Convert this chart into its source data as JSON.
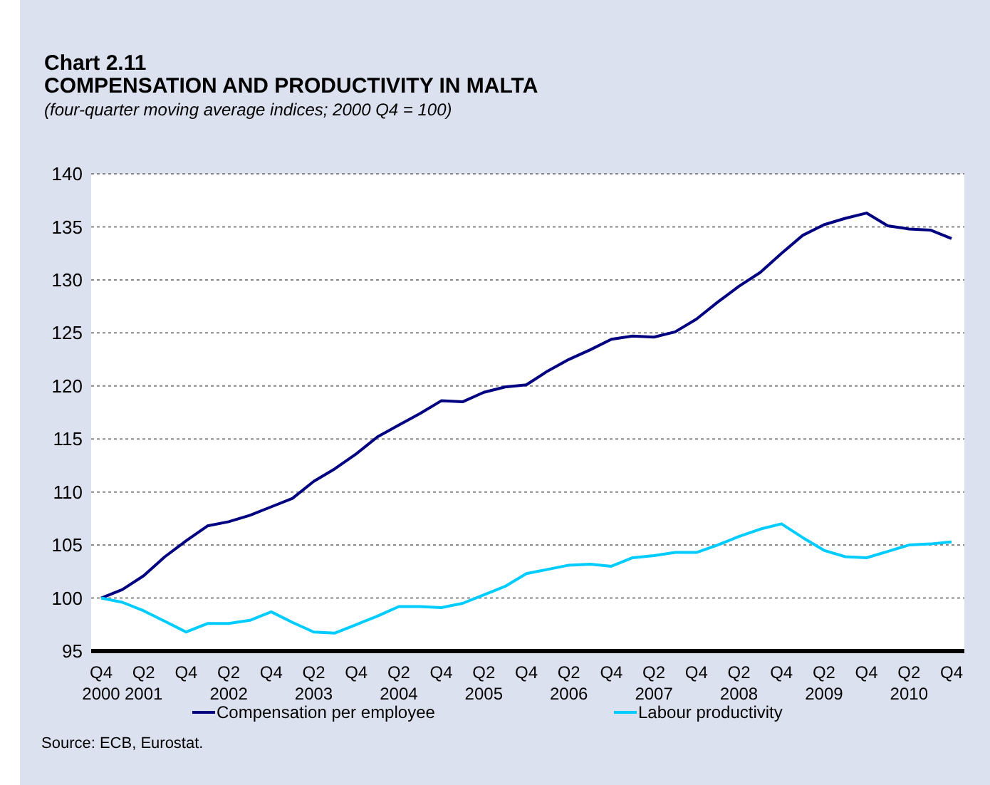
{
  "chart_data": {
    "type": "line",
    "title": "Chart 2.11\nCOMPENSATION AND PRODUCTIVITY IN MALTA",
    "subtitle": "(four-quarter moving average indices; 2000 Q4 = 100)",
    "categories": [
      "Q4\n2000",
      null,
      "Q2\n2001",
      null,
      "Q4",
      null,
      "Q2\n2002",
      null,
      "Q4",
      null,
      "Q2\n2003",
      null,
      "Q4",
      null,
      "Q2\n2004",
      null,
      "Q4",
      null,
      "Q2\n2005",
      null,
      "Q4",
      null,
      "Q2\n2006",
      null,
      "Q4",
      null,
      "Q2\n2007",
      null,
      "Q4",
      null,
      "Q2\n2008",
      null,
      "Q4",
      null,
      "Q2\n2009",
      null,
      "Q4",
      null,
      "Q2\n2010",
      null,
      "Q4"
    ],
    "series": [
      {
        "name": "Compensation per employee",
        "color": "#000080",
        "values": [
          100,
          100.8,
          102.1,
          103.9,
          105.4,
          106.8,
          107.2,
          107.8,
          108.6,
          109.4,
          111.0,
          112.2,
          113.6,
          115.2,
          116.3,
          117.4,
          118.6,
          118.5,
          119.4,
          119.9,
          120.1,
          121.4,
          122.5,
          123.4,
          124.4,
          124.7,
          124.6,
          125.1,
          126.3,
          127.9,
          129.4,
          130.7,
          132.5,
          134.2,
          135.2,
          135.8,
          136.3,
          135.1,
          134.8,
          134.7,
          133.9
        ]
      },
      {
        "name": "Labour productivity",
        "color": "#00ccff",
        "values": [
          100,
          99.6,
          98.8,
          97.8,
          96.8,
          97.6,
          97.6,
          97.9,
          98.7,
          97.7,
          96.8,
          96.7,
          97.5,
          98.3,
          99.2,
          99.2,
          99.1,
          99.5,
          100.3,
          101.1,
          102.3,
          102.7,
          103.1,
          103.2,
          103.0,
          103.8,
          104.0,
          104.3,
          104.3,
          105.0,
          105.8,
          106.5,
          107.0,
          105.7,
          104.5,
          103.9,
          103.8,
          104.4,
          105.0,
          105.1,
          105.3
        ]
      }
    ],
    "ylim": [
      95,
      140
    ],
    "yticks": [
      95,
      100,
      105,
      110,
      115,
      120,
      125,
      130,
      135,
      140
    ],
    "grid": "y",
    "legend": "bottom",
    "marker": "none",
    "line_style": "solid",
    "annotations": [
      "Source: ECB, Eurostat."
    ]
  }
}
